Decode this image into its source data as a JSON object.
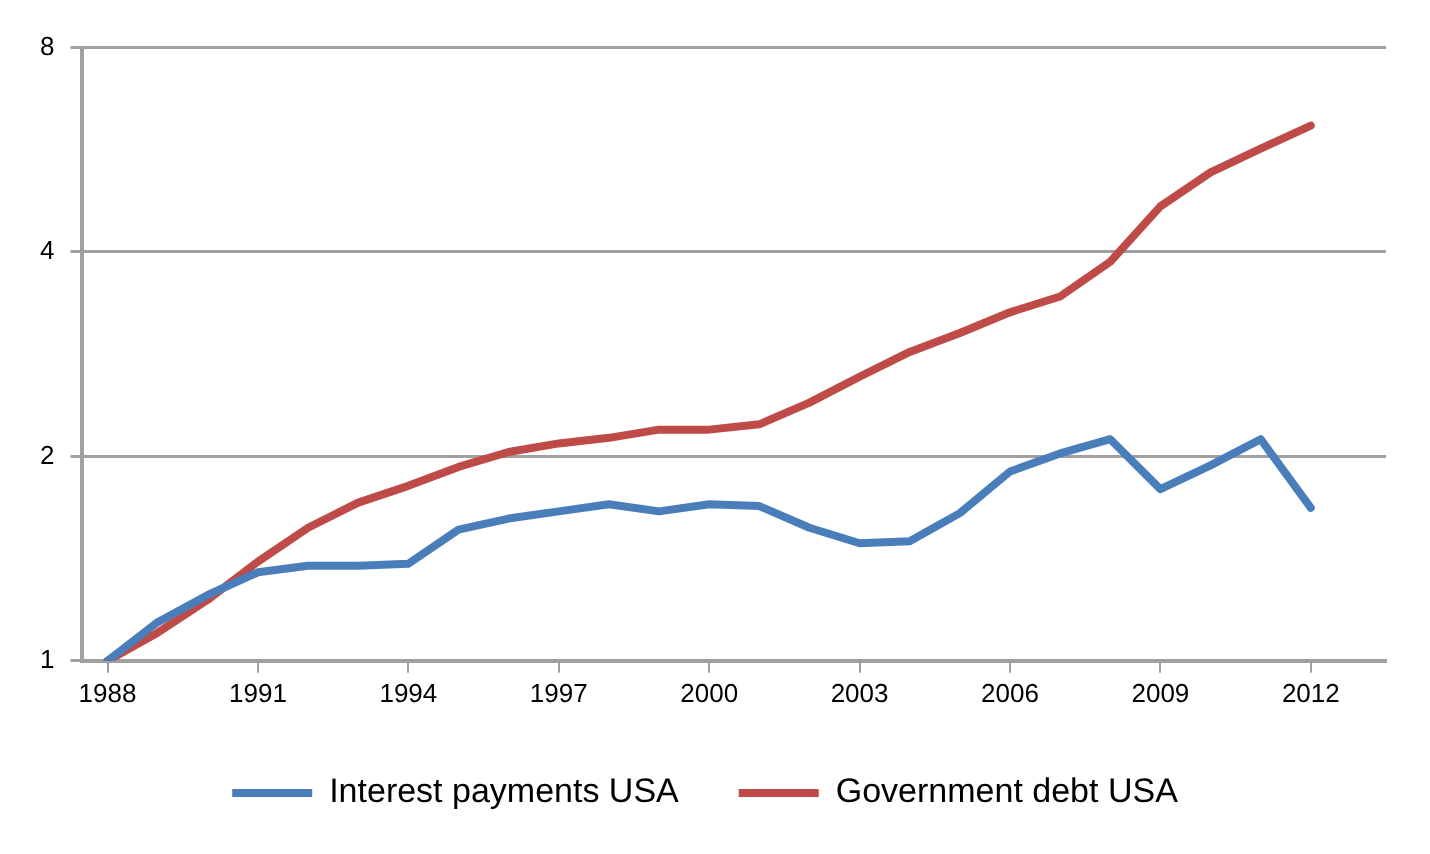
{
  "chart_data": {
    "type": "line",
    "x": [
      1988,
      1989,
      1990,
      1991,
      1992,
      1993,
      1994,
      1995,
      1996,
      1997,
      1998,
      1999,
      2000,
      2001,
      2002,
      2003,
      2004,
      2005,
      2006,
      2007,
      2008,
      2009,
      2010,
      2011,
      2012
    ],
    "series": [
      {
        "name": "Interest payments USA",
        "color": "#4a7ebb",
        "values": [
          1,
          1.14,
          1.25,
          1.35,
          1.38,
          1.38,
          1.39,
          1.56,
          1.62,
          1.66,
          1.7,
          1.66,
          1.7,
          1.69,
          1.57,
          1.49,
          1.5,
          1.65,
          1.9,
          2.02,
          2.12,
          1.79,
          1.94,
          2.12,
          1.68
        ]
      },
      {
        "name": "Government debt USA",
        "color": "#be4b48",
        "values": [
          1,
          1.1,
          1.23,
          1.4,
          1.57,
          1.71,
          1.81,
          1.93,
          2.03,
          2.09,
          2.13,
          2.19,
          2.19,
          2.23,
          2.4,
          2.62,
          2.85,
          3.04,
          3.26,
          3.44,
          3.87,
          4.67,
          5.24,
          5.68,
          6.14
        ]
      }
    ],
    "log": "y",
    "ylim": [
      1,
      8
    ],
    "yticks": [
      1,
      2,
      4,
      8
    ],
    "xlim": [
      1987.5,
      2013.5
    ],
    "xticks": [
      1988,
      1991,
      1994,
      1997,
      2000,
      2003,
      2006,
      2009,
      2012
    ],
    "grid": "y",
    "legend": "bottom",
    "marker": "none",
    "line_style": "solid"
  }
}
